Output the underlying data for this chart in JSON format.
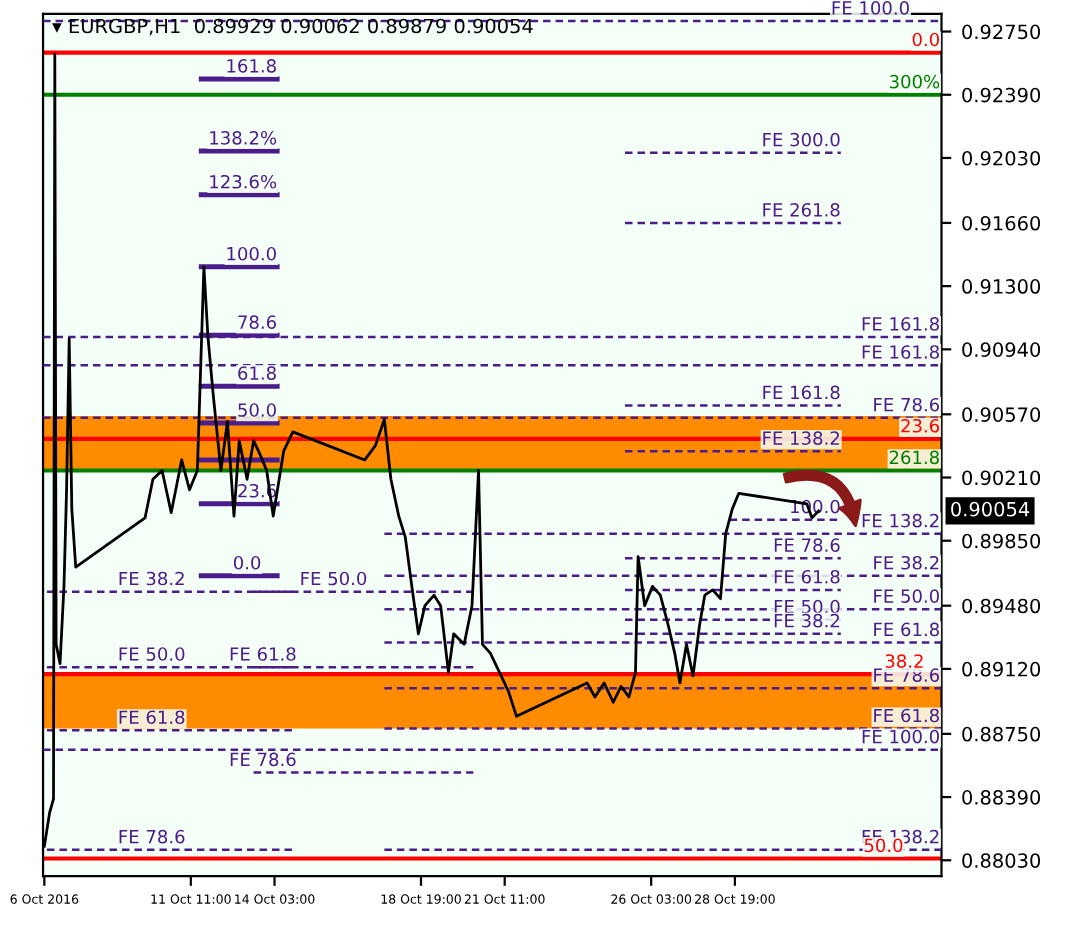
{
  "chart_data": {
    "type": "line",
    "title": "▾ EURGBP,H1  0.89929 0.90062 0.89879 0.90054",
    "x": [
      "2016-10-06T19:00",
      "2016-10-06T23:00",
      "2016-10-07T02:00",
      "2016-10-07T03:00",
      "2016-10-07T04:00",
      "2016-10-07T07:00",
      "2016-10-07T10:00",
      "2016-10-07T12:00",
      "2016-10-07T14:00",
      "2016-10-07T16:00",
      "2016-10-07T19:00",
      "2016-10-10T00:00",
      "2016-10-10T06:00",
      "2016-10-10T13:00",
      "2016-10-10T20:00",
      "2016-10-11T04:00",
      "2016-10-11T10:00",
      "2016-10-11T16:00",
      "2016-10-11T21:00",
      "2016-10-12T00:00",
      "2016-10-12T04:00",
      "2016-10-12T10:00",
      "2016-10-12T15:00",
      "2016-10-12T20:00",
      "2016-10-13T00:00",
      "2016-10-13T06:00",
      "2016-10-13T11:00",
      "2016-10-13T16:00",
      "2016-10-13T21:00",
      "2016-10-14T02:00",
      "2016-10-14T10:00",
      "2016-10-14T17:00",
      "2016-10-17T00:00",
      "2016-10-17T08:00",
      "2016-10-17T15:00",
      "2016-10-17T20:00",
      "2016-10-18T02:00",
      "2016-10-18T07:00",
      "2016-10-18T12:00",
      "2016-10-18T17:00",
      "2016-10-18T22:00",
      "2016-10-19T05:00",
      "2016-10-19T10:00",
      "2016-10-19T16:00",
      "2016-10-19T20:00",
      "2016-10-20T04:00",
      "2016-10-20T10:00",
      "2016-10-20T15:00",
      "2016-10-20T18:00",
      "2016-10-21T00:00",
      "2016-10-21T07:00",
      "2016-10-21T14:00",
      "2016-10-21T20:00",
      "2016-10-24T02:00",
      "2016-10-24T08:00",
      "2016-10-24T15:00",
      "2016-10-24T22:00",
      "2016-10-25T04:00",
      "2016-10-25T10:00",
      "2016-10-25T15:00",
      "2016-10-25T17:00",
      "2016-10-25T22:00",
      "2016-10-26T04:00",
      "2016-10-26T10:00",
      "2016-10-26T16:00",
      "2016-10-26T21:00",
      "2016-10-27T01:00",
      "2016-10-27T06:00",
      "2016-10-27T11:00",
      "2016-10-27T16:00",
      "2016-10-27T20:00",
      "2016-10-28T02:00",
      "2016-10-28T08:00",
      "2016-10-28T12:00",
      "2016-10-28T17:00",
      "2016-10-28T22:00",
      "2016-10-31T02:00",
      "2016-10-31T06:00",
      "2016-10-31T11:00"
    ],
    "series": [
      {
        "color": "#000000",
        "values": [
          0.8811,
          0.883,
          0.8838,
          0.9262,
          0.8926,
          0.8915,
          0.8959,
          0.9014,
          0.91,
          0.9003,
          0.897,
          0.8998,
          0.902,
          0.9025,
          0.9001,
          0.9031,
          0.9014,
          0.9025,
          0.9141,
          0.9102,
          0.9069,
          0.9025,
          0.9053,
          0.8999,
          0.9042,
          0.902,
          0.9042,
          0.9034,
          0.9025,
          0.8999,
          0.9036,
          0.9047,
          0.9031,
          0.9039,
          0.9054,
          0.902,
          0.8999,
          0.8987,
          0.8959,
          0.8932,
          0.8948,
          0.8954,
          0.8948,
          0.891,
          0.8932,
          0.8926,
          0.8948,
          0.9025,
          0.8926,
          0.8921,
          0.891,
          0.8899,
          0.8885,
          0.8904,
          0.8896,
          0.8904,
          0.8893,
          0.8902,
          0.8896,
          0.891,
          0.8976,
          0.8948,
          0.8959,
          0.8954,
          0.8937,
          0.8921,
          0.8904,
          0.8926,
          0.8908,
          0.8937,
          0.8954,
          0.8957,
          0.8952,
          0.8989,
          0.9003,
          0.9012,
          0.9006,
          0.8998,
          0.9002
        ]
      },
      {
        "color": "#4b1c8c",
        "line_style": "solid",
        "x": [
          "2016-10-11T19:00",
          "2016-10-14T05:00"
        ],
        "values": [
          0.9248,
          0.9248
        ]
      },
      {
        "color": "#4b1c8c",
        "line_style": "solid",
        "x": [
          "2016-10-11T19:00",
          "2016-10-14T05:00"
        ],
        "values": [
          0.9207,
          0.9207
        ]
      },
      {
        "color": "#4b1c8c",
        "line_style": "solid",
        "x": [
          "2016-10-11T19:00",
          "2016-10-14T05:00"
        ],
        "values": [
          0.9182,
          0.9182
        ]
      },
      {
        "color": "#4b1c8c",
        "line_style": "solid",
        "x": [
          "2016-10-11T19:00",
          "2016-10-14T05:00"
        ],
        "values": [
          0.9141,
          0.9141
        ]
      },
      {
        "color": "#4b1c8c",
        "line_style": "solid",
        "x": [
          "2016-10-11T19:00",
          "2016-10-14T05:00"
        ],
        "values": [
          0.9102,
          0.9102
        ]
      },
      {
        "color": "#4b1c8c",
        "line_style": "solid",
        "x": [
          "2016-10-11T19:00",
          "2016-10-14T05:00"
        ],
        "values": [
          0.9073,
          0.9073
        ]
      },
      {
        "color": "#4b1c8c",
        "line_style": "solid",
        "x": [
          "2016-10-11T19:00",
          "2016-10-14T05:00"
        ],
        "values": [
          0.9052,
          0.9052
        ]
      },
      {
        "color": "#4b1c8c",
        "line_style": "solid",
        "x": [
          "2016-10-11T19:00",
          "2016-10-14T05:00"
        ],
        "values": [
          0.9031,
          0.9031
        ]
      },
      {
        "color": "#4b1c8c",
        "line_style": "solid",
        "x": [
          "2016-10-11T19:00",
          "2016-10-14T05:00"
        ],
        "values": [
          0.9006,
          0.9006
        ]
      },
      {
        "color": "#4b1c8c",
        "line_style": "solid",
        "x": [
          "2016-10-11T19:00",
          "2016-10-14T05:00"
        ],
        "values": [
          0.8965,
          0.8965
        ]
      },
      {
        "color": "#4b1c8c",
        "line_style": "dashed",
        "x": [
          "2016-10-06T18:00",
          "2016-11-04T09:00"
        ],
        "values": [
          0.9281,
          0.9281
        ]
      },
      {
        "color": "#4b1c8c",
        "line_style": "dashed",
        "x": [
          "2016-10-25T07:00",
          "2016-11-01T04:00"
        ],
        "values": [
          0.9206,
          0.9206
        ]
      },
      {
        "color": "#4b1c8c",
        "line_style": "dashed",
        "x": [
          "2016-10-25T07:00",
          "2016-11-01T04:00"
        ],
        "values": [
          0.9166,
          0.9166
        ]
      },
      {
        "color": "#4b1c8c",
        "line_style": "dashed",
        "x": [
          "2016-10-06T18:00",
          "2016-11-04T09:00"
        ],
        "values": [
          0.9101,
          0.9101
        ]
      },
      {
        "color": "#4b1c8c",
        "line_style": "dashed",
        "x": [
          "2016-10-06T18:00",
          "2016-11-04T09:00"
        ],
        "values": [
          0.9085,
          0.9085
        ]
      },
      {
        "color": "#4b1c8c",
        "line_style": "dashed",
        "x": [
          "2016-10-25T07:00",
          "2016-11-01T04:00"
        ],
        "values": [
          0.9062,
          0.9062
        ]
      },
      {
        "color": "#4b1c8c",
        "line_style": "dashed",
        "x": [
          "2016-10-06T18:00",
          "2016-11-04T09:00"
        ],
        "values": [
          0.9055,
          0.9055
        ]
      },
      {
        "color": "#4b1c8c",
        "line_style": "dashed",
        "x": [
          "2016-10-25T07:00",
          "2016-11-01T04:00"
        ],
        "values": [
          0.9036,
          0.9036
        ]
      },
      {
        "color": "#4b1c8c",
        "line_style": "dashed",
        "x": [
          "2016-10-28T15:00",
          "2016-11-01T04:00"
        ],
        "values": [
          0.8997,
          0.8997
        ]
      },
      {
        "color": "#4b1c8c",
        "line_style": "dashed",
        "x": [
          "2016-10-25T07:00",
          "2016-11-01T04:00"
        ],
        "values": [
          0.8975,
          0.8975
        ]
      },
      {
        "color": "#4b1c8c",
        "line_style": "dashed",
        "x": [
          "2016-10-25T07:00",
          "2016-11-01T04:00"
        ],
        "values": [
          0.8957,
          0.8957
        ]
      },
      {
        "color": "#4b1c8c",
        "line_style": "dashed",
        "x": [
          "2016-10-25T07:00",
          "2016-11-01T04:00"
        ],
        "values": [
          0.894,
          0.894
        ]
      },
      {
        "color": "#4b1c8c",
        "line_style": "dashed",
        "x": [
          "2016-10-25T07:00",
          "2016-11-01T04:00"
        ],
        "values": [
          0.8932,
          0.8932
        ]
      },
      {
        "color": "#4b1c8c",
        "line_style": "dashed",
        "x": [
          "2016-10-17T15:00",
          "2016-11-04T09:00"
        ],
        "values": [
          0.8989,
          0.8989
        ]
      },
      {
        "color": "#4b1c8c",
        "line_style": "dashed",
        "x": [
          "2016-10-17T15:00",
          "2016-11-04T09:00"
        ],
        "values": [
          0.8965,
          0.8965
        ]
      },
      {
        "color": "#4b1c8c",
        "line_style": "dashed",
        "x": [
          "2016-10-17T15:00",
          "2016-11-04T09:00"
        ],
        "values": [
          0.8946,
          0.8946
        ]
      },
      {
        "color": "#4b1c8c",
        "line_style": "dashed",
        "x": [
          "2016-10-17T15:00",
          "2016-11-04T09:00"
        ],
        "values": [
          0.8927,
          0.8927
        ]
      },
      {
        "color": "#4b1c8c",
        "line_style": "dashed",
        "x": [
          "2016-10-17T15:00",
          "2016-11-04T09:00"
        ],
        "values": [
          0.8901,
          0.8901
        ]
      },
      {
        "color": "#4b1c8c",
        "line_style": "dashed",
        "x": [
          "2016-10-17T15:00",
          "2016-11-04T09:00"
        ],
        "values": [
          0.8878,
          0.8878
        ]
      },
      {
        "color": "#4b1c8c",
        "line_style": "dashed",
        "x": [
          "2016-10-06T18:00",
          "2016-11-04T09:00"
        ],
        "values": [
          0.8866,
          0.8866
        ]
      },
      {
        "color": "#4b1c8c",
        "line_style": "dashed",
        "x": [
          "2016-10-17T15:00",
          "2016-11-04T09:00"
        ],
        "values": [
          0.8809,
          0.8809
        ]
      },
      {
        "color": "#4b1c8c",
        "line_style": "dashed",
        "x": [
          "2016-10-06T21:00",
          "2016-10-14T20:00"
        ],
        "values": [
          0.8956,
          0.8956
        ]
      },
      {
        "color": "#4b1c8c",
        "line_style": "dashed",
        "x": [
          "2016-10-06T21:00",
          "2016-10-14T20:00"
        ],
        "values": [
          0.8913,
          0.8913
        ]
      },
      {
        "color": "#4b1c8c",
        "line_style": "dashed",
        "x": [
          "2016-10-06T21:00",
          "2016-10-14T20:00"
        ],
        "values": [
          0.8877,
          0.8877
        ]
      },
      {
        "color": "#4b1c8c",
        "line_style": "dashed",
        "x": [
          "2016-10-06T21:00",
          "2016-10-14T20:00"
        ],
        "values": [
          0.8809,
          0.8809
        ]
      },
      {
        "color": "#4b1c8c",
        "line_style": "dashed",
        "x": [
          "2016-10-13T11:00",
          "2016-10-20T11:00"
        ],
        "values": [
          0.8956,
          0.8956
        ]
      },
      {
        "color": "#4b1c8c",
        "line_style": "dashed",
        "x": [
          "2016-10-13T11:00",
          "2016-10-20T11:00"
        ],
        "values": [
          0.8913,
          0.8913
        ]
      },
      {
        "color": "#4b1c8c",
        "line_style": "dashed",
        "x": [
          "2016-10-13T11:00",
          "2016-10-20T11:00"
        ],
        "values": [
          0.8853,
          0.8853
        ]
      }
    ],
    "annotations": [
      {
        "text": "161.8",
        "x": "2016-10-14T05:00",
        "y": 0.9248
      },
      {
        "text": "138.2%",
        "x": "2016-10-14T05:00",
        "y": 0.9207
      },
      {
        "text": "123.6%",
        "x": "2016-10-14T05:00",
        "y": 0.9182
      },
      {
        "text": "100.0",
        "x": "2016-10-14T05:00",
        "y": 0.9141
      },
      {
        "text": "78.6",
        "x": "2016-10-14T05:00",
        "y": 0.9102
      },
      {
        "text": "61.8",
        "x": "2016-10-14T05:00",
        "y": 0.9073
      },
      {
        "text": "50.0",
        "x": "2016-10-14T05:00",
        "y": 0.9052
      },
      {
        "text": "23.6",
        "x": "2016-10-14T05:00",
        "y": 0.9006
      },
      {
        "text": "0.0",
        "x": "2016-10-13T17:00",
        "y": 0.8965
      },
      {
        "text": "FE 100.0",
        "x": "2016-11-03T09:00",
        "y": 0.9281
      },
      {
        "text": "FE 300.0",
        "x": "2016-11-01T04:00",
        "y": 0.9206
      },
      {
        "text": "FE 261.8",
        "x": "2016-11-01T04:00",
        "y": 0.9166
      },
      {
        "text": "FE 161.8",
        "x": "2016-11-04T08:00",
        "y": 0.9101
      },
      {
        "text": "FE 161.8",
        "x": "2016-11-04T08:00",
        "y": 0.9085
      },
      {
        "text": "FE 161.8",
        "x": "2016-11-01T04:00",
        "y": 0.9062
      },
      {
        "text": "FE 78.6",
        "x": "2016-11-04T08:00",
        "y": 0.9055
      },
      {
        "text": "FE 138.2",
        "x": "2016-11-01T04:00",
        "y": 0.9036
      },
      {
        "text": "100.0",
        "x": "2016-11-01T04:00",
        "y": 0.8997
      },
      {
        "text": "FE 78.6",
        "x": "2016-11-01T04:00",
        "y": 0.8975
      },
      {
        "text": "FE 61.8",
        "x": "2016-11-01T04:00",
        "y": 0.8957
      },
      {
        "text": "FE 50.0",
        "x": "2016-11-01T04:00",
        "y": 0.894
      },
      {
        "text": "FE 38.2",
        "x": "2016-11-01T04:00",
        "y": 0.8932
      },
      {
        "text": "FE 138.2",
        "x": "2016-11-04T08:00",
        "y": 0.8989
      },
      {
        "text": "FE 38.2",
        "x": "2016-11-04T08:00",
        "y": 0.8965
      },
      {
        "text": "FE 50.0",
        "x": "2016-11-04T08:00",
        "y": 0.8946
      },
      {
        "text": "FE 61.8",
        "x": "2016-11-04T08:00",
        "y": 0.8927
      },
      {
        "text": "FE 78.6",
        "x": "2016-11-04T08:00",
        "y": 0.8901
      },
      {
        "text": "FE 61.8",
        "x": "2016-11-04T08:00",
        "y": 0.8878
      },
      {
        "text": "FE 100.0",
        "x": "2016-11-04T08:00",
        "y": 0.8866
      },
      {
        "text": "FE 138.2",
        "x": "2016-11-04T08:00",
        "y": 0.8809
      },
      {
        "text": "FE 38.2",
        "x": "2016-10-11T07:00",
        "y": 0.8956
      },
      {
        "text": "FE 50.0",
        "x": "2016-10-11T07:00",
        "y": 0.8913
      },
      {
        "text": "FE 61.8",
        "x": "2016-10-11T07:00",
        "y": 0.8877
      },
      {
        "text": "FE 78.6",
        "x": "2016-10-11T07:00",
        "y": 0.8809
      },
      {
        "text": "FE 50.0",
        "x": "2016-10-17T02:00",
        "y": 0.8956
      },
      {
        "text": "FE 61.8",
        "x": "2016-10-14T20:00",
        "y": 0.8913
      },
      {
        "text": "FE 78.6",
        "x": "2016-10-14T20:00",
        "y": 0.8853
      },
      {
        "text": "0.0",
        "x": "2016-11-04T08:00",
        "y": 0.9263
      },
      {
        "text": "300%",
        "x": "2016-11-04T08:00",
        "y": 0.9239
      },
      {
        "text": "23.6",
        "x": "2016-11-04T08:00",
        "y": 0.9043
      },
      {
        "text": "261.8",
        "x": "2016-11-04T08:00",
        "y": 0.9025
      },
      {
        "text": "38.2",
        "x": "2016-11-03T20:00",
        "y": 0.8909
      },
      {
        "text": "50.0",
        "x": "2016-11-03T04:00",
        "y": 0.8804
      },
      "0.90054"
    ],
    "ref_lines": [
      {
        "axis": "y",
        "value": 0.9263,
        "color": "#ff0000",
        "line_style": "solid"
      },
      {
        "axis": "y",
        "value": 0.9239,
        "color": "#008000",
        "line_style": "solid"
      },
      {
        "axis": "y",
        "value": 0.9043,
        "color": "#ff0000",
        "line_style": "solid"
      },
      {
        "axis": "y",
        "value": 0.9025,
        "color": "#008000",
        "line_style": "solid"
      },
      {
        "axis": "y",
        "value": 0.8909,
        "color": "#ff0000",
        "line_style": "solid"
      },
      {
        "axis": "y",
        "value": 0.8804,
        "color": "#ff0000",
        "line_style": "solid"
      }
    ],
    "bands": [
      {
        "axis": "y",
        "from": 0.9025,
        "to": 0.9056,
        "color": "#ff8c00"
      },
      {
        "axis": "y",
        "from": 0.8878,
        "to": 0.8908,
        "color": "#ff8c00"
      }
    ],
    "xlim": [
      "2016-10-06T18:00",
      "2016-11-04T09:00"
    ],
    "ylim": [
      0.8794,
      0.9285
    ],
    "xticks": [
      {
        "value": "2016-10-06T19:00",
        "label": "6 Oct 2016"
      },
      {
        "value": "2016-10-11T11:00",
        "label": "11 Oct 11:00"
      },
      {
        "value": "2016-10-14T03:00",
        "label": "14 Oct 03:00"
      },
      {
        "value": "2016-10-18T19:00",
        "label": "18 Oct 19:00"
      },
      {
        "value": "2016-10-21T11:00",
        "label": "21 Oct 11:00"
      },
      {
        "value": "2016-10-26T03:00",
        "label": "26 Oct 03:00"
      },
      {
        "value": "2016-10-28T19:00",
        "label": "28 Oct 19:00"
      }
    ],
    "yticks": [
      {
        "value": 0.9275,
        "label": "0.92750"
      },
      {
        "value": 0.9239,
        "label": "0.92390"
      },
      {
        "value": 0.9203,
        "label": "0.92030"
      },
      {
        "value": 0.9166,
        "label": "0.91660"
      },
      {
        "value": 0.913,
        "label": "0.91300"
      },
      {
        "value": 0.9094,
        "label": "0.90940"
      },
      {
        "value": 0.9057,
        "label": "0.90570"
      },
      {
        "value": 0.9021,
        "label": "0.90210"
      },
      {
        "value": 0.8985,
        "label": "0.89850"
      },
      {
        "value": 0.8948,
        "label": "0.89480"
      },
      {
        "value": 0.8912,
        "label": "0.89120"
      },
      {
        "value": 0.8875,
        "label": "0.88750"
      },
      {
        "value": 0.8839,
        "label": "0.88390"
      },
      {
        "value": 0.8803,
        "label": "0.88030"
      }
    ],
    "grid": false,
    "legend": false
  }
}
